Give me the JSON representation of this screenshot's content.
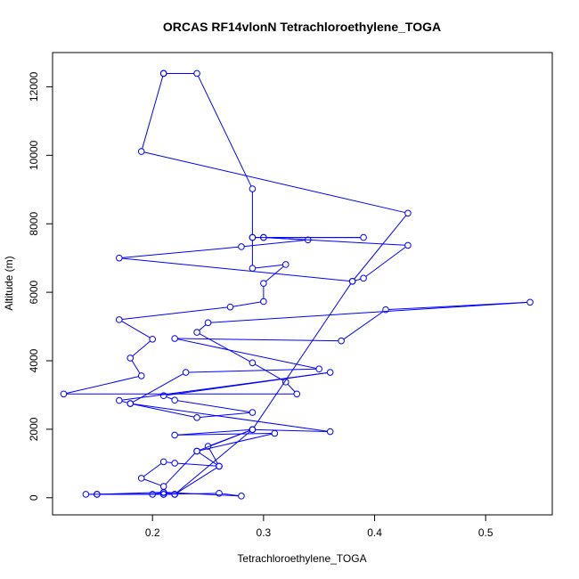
{
  "chart_data": {
    "type": "line",
    "title": "ORCAS RF14vlonN Tetrachloroethylene_TOGA",
    "xlabel": "Tetrachloroethylene_TOGA",
    "ylabel": "Altitude (m)",
    "xlim": [
      0.11,
      0.56
    ],
    "ylim": [
      -500,
      13000
    ],
    "xticks": [
      0.2,
      0.3,
      0.4,
      0.5
    ],
    "xtick_labels": [
      "0.2",
      "0.3",
      "0.4",
      "0.5"
    ],
    "yticks": [
      0,
      2000,
      4000,
      6000,
      8000,
      10000,
      12000
    ],
    "ytick_labels": [
      "0",
      "2000",
      "4000",
      "6000",
      "8000",
      "10000",
      "12000"
    ],
    "grid": false,
    "series_color": "#0000ff",
    "series": [
      {
        "points": [
          [
            0.21,
            12390
          ],
          [
            0.24,
            12390
          ],
          [
            0.29,
            9020
          ],
          [
            0.29,
            7600
          ],
          [
            0.39,
            7600
          ],
          [
            0.3,
            7600
          ],
          [
            0.29,
            7600
          ],
          [
            0.29,
            6700
          ],
          [
            0.32,
            6810
          ],
          [
            0.3,
            6260
          ],
          [
            0.3,
            5730
          ],
          [
            0.27,
            5570
          ],
          [
            0.17,
            5200
          ],
          [
            0.2,
            4630
          ],
          [
            0.18,
            4080
          ],
          [
            0.19,
            3560
          ],
          [
            0.12,
            3030
          ],
          [
            0.33,
            3030
          ],
          [
            0.32,
            3380
          ],
          [
            0.29,
            3940
          ],
          [
            0.24,
            4830
          ],
          [
            0.25,
            5110
          ],
          [
            0.54,
            5710
          ],
          [
            0.41,
            5490
          ],
          [
            0.37,
            4580
          ],
          [
            0.22,
            4650
          ],
          [
            0.35,
            3760
          ],
          [
            0.23,
            3660
          ],
          [
            0.18,
            2750
          ],
          [
            0.17,
            2840
          ],
          [
            0.36,
            3660
          ],
          [
            0.21,
            2980
          ],
          [
            0.22,
            2850
          ],
          [
            0.29,
            2490
          ],
          [
            0.24,
            2340
          ],
          [
            0.18,
            2750
          ],
          [
            0.36,
            1930
          ],
          [
            0.29,
            1990
          ],
          [
            0.22,
            1830
          ],
          [
            0.31,
            1880
          ],
          [
            0.24,
            1360
          ],
          [
            0.26,
            920
          ],
          [
            0.22,
            1010
          ],
          [
            0.21,
            1050
          ],
          [
            0.19,
            570
          ],
          [
            0.21,
            330
          ],
          [
            0.24,
            1360
          ],
          [
            0.29,
            1990
          ],
          [
            0.22,
            100
          ],
          [
            0.21,
            150
          ],
          [
            0.2,
            100
          ],
          [
            0.15,
            100
          ],
          [
            0.14,
            100
          ],
          [
            0.21,
            100
          ],
          [
            0.26,
            130
          ],
          [
            0.28,
            50
          ],
          [
            0.21,
            160
          ],
          [
            0.15,
            100
          ],
          [
            0.21,
            100
          ],
          [
            0.22,
            100
          ],
          [
            0.26,
            920
          ],
          [
            0.25,
            1500
          ],
          [
            0.29,
            1990
          ],
          [
            0.38,
            6320
          ],
          [
            0.39,
            6410
          ],
          [
            0.43,
            7370
          ],
          [
            0.3,
            7600
          ],
          [
            0.34,
            7530
          ],
          [
            0.28,
            7330
          ],
          [
            0.17,
            7000
          ],
          [
            0.38,
            6320
          ],
          [
            0.43,
            8310
          ],
          [
            0.19,
            10110
          ],
          [
            0.21,
            12390
          ]
        ]
      }
    ]
  }
}
